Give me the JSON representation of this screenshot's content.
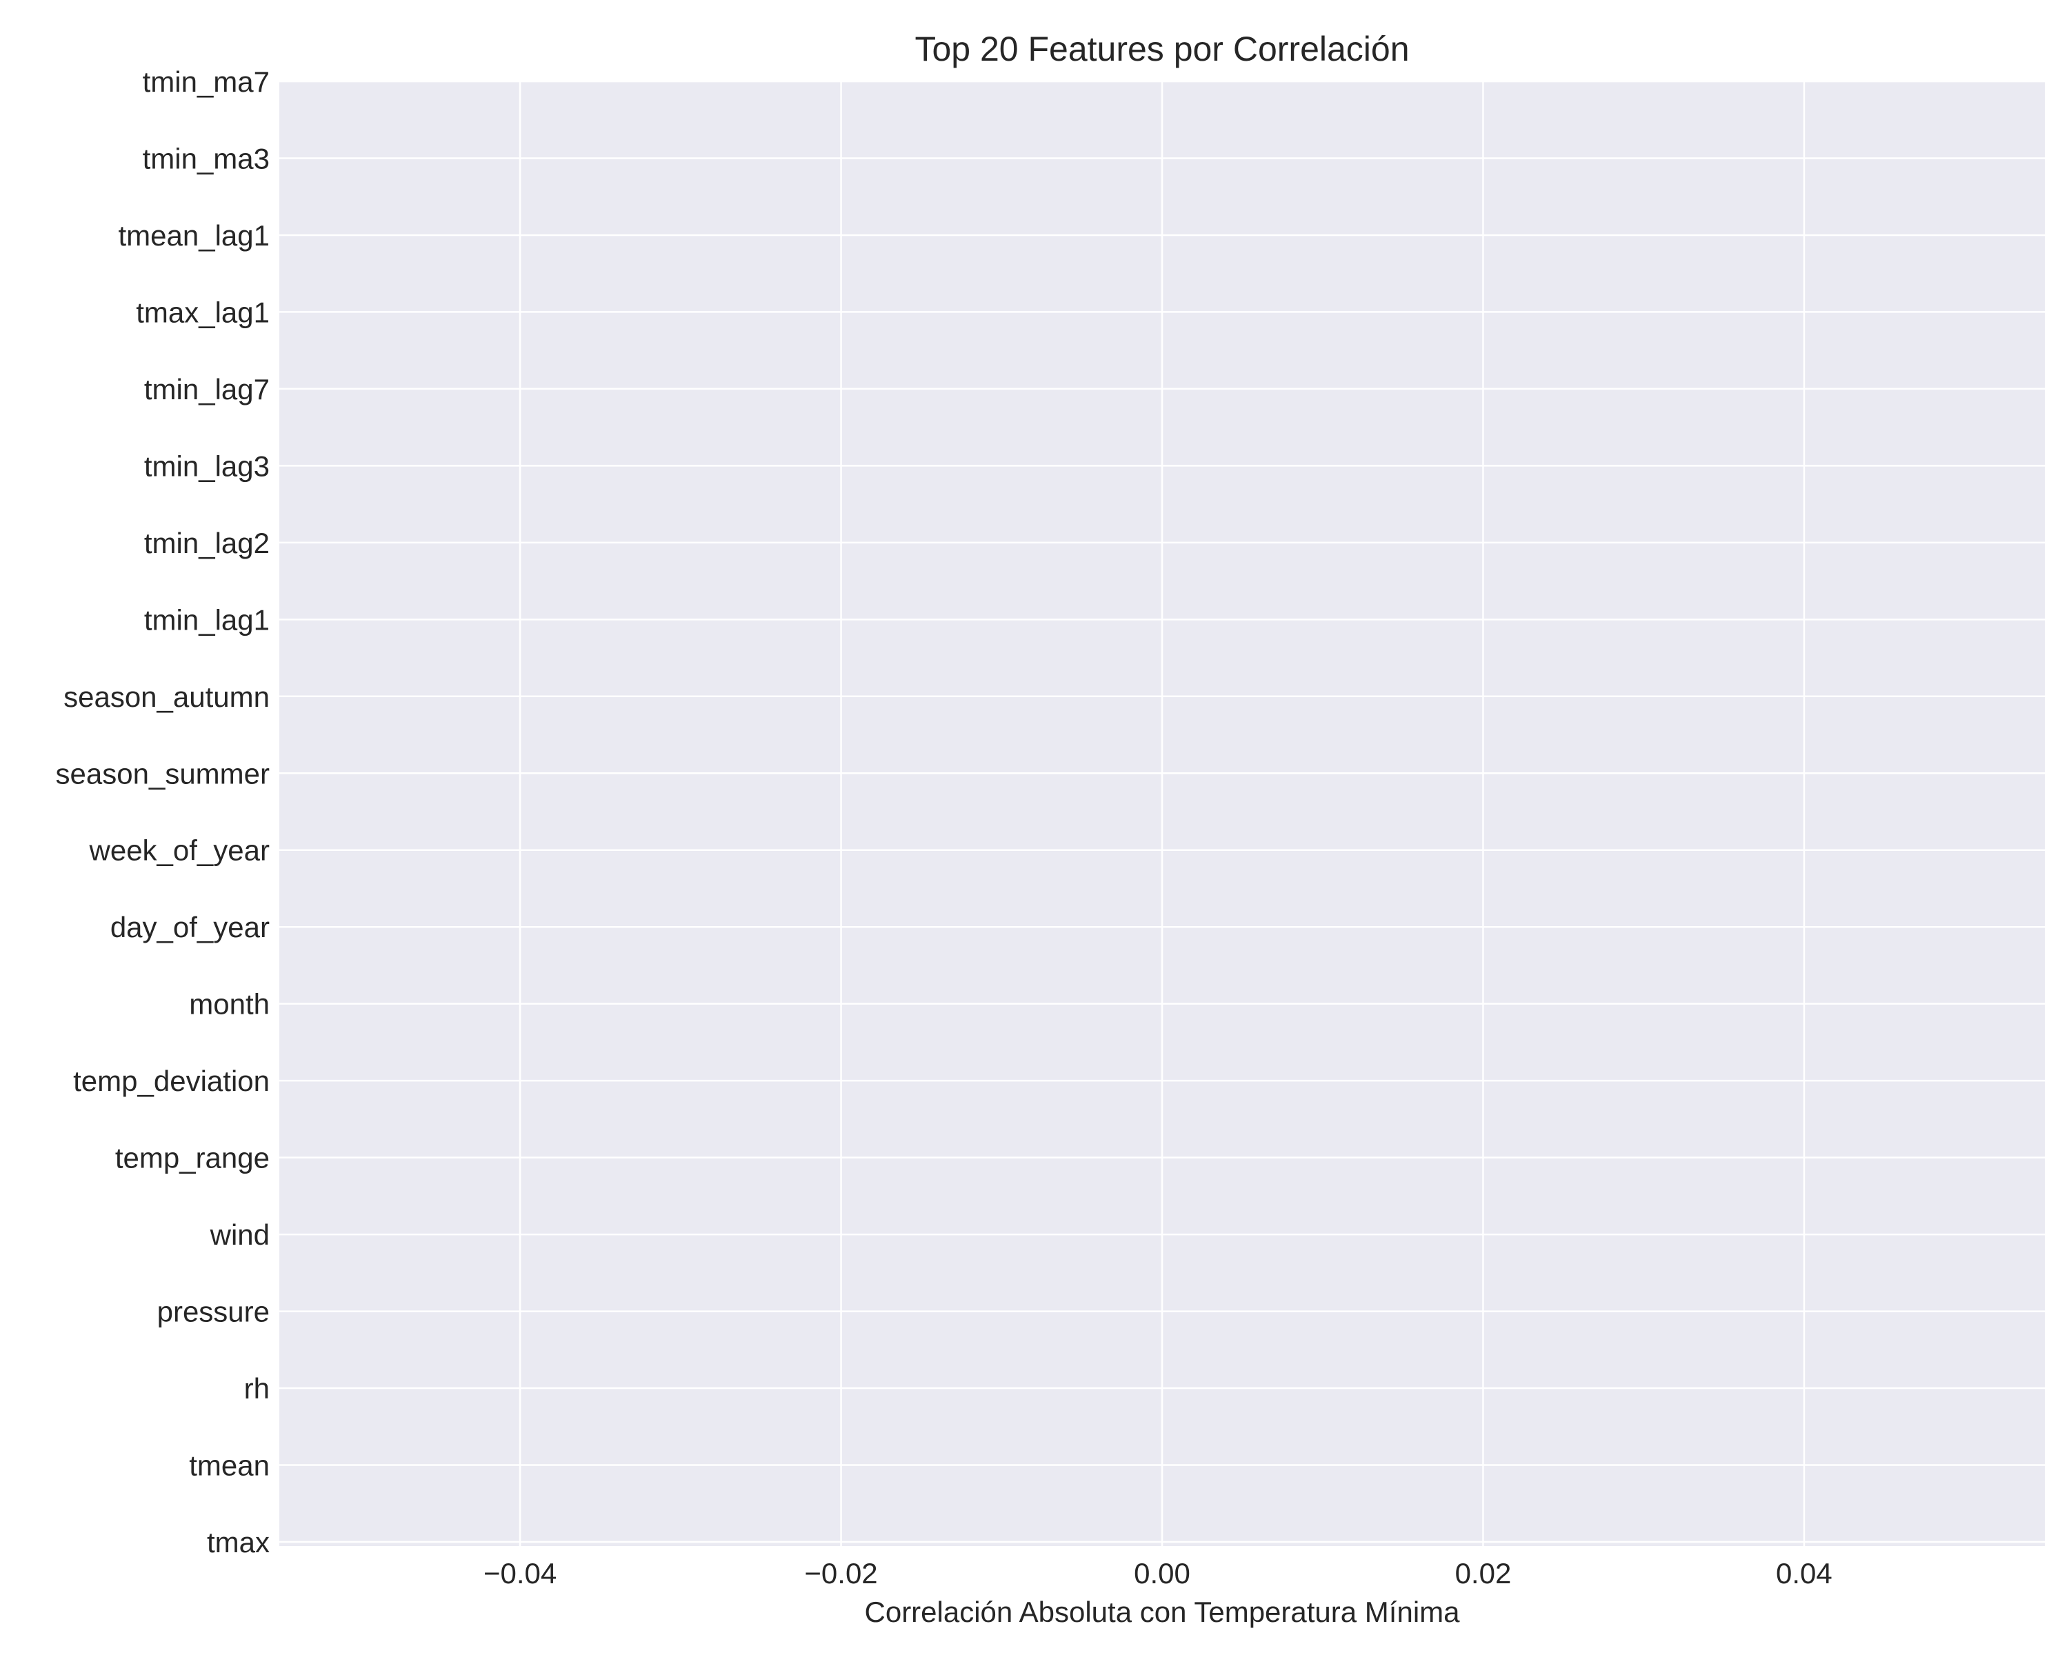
{
  "colors": {
    "plot_background": "#EAEAF2",
    "grid": "#FFFFFF",
    "text": "#262626",
    "bar": "#4C72B0"
  },
  "chart_data": {
    "type": "bar",
    "orientation": "horizontal",
    "title": "Top 20 Features por Correlación",
    "xlabel": "Correlación Absoluta con Temperatura Mínima",
    "ylabel": "",
    "categories": [
      "tmin_ma7",
      "tmin_ma3",
      "tmean_lag1",
      "tmax_lag1",
      "tmin_lag7",
      "tmin_lag3",
      "tmin_lag2",
      "tmin_lag1",
      "season_autumn",
      "season_summer",
      "week_of_year",
      "day_of_year",
      "month",
      "temp_deviation",
      "temp_range",
      "wind",
      "pressure",
      "rh",
      "tmean",
      "tmax"
    ],
    "values": [
      0,
      0,
      0,
      0,
      0,
      0,
      0,
      0,
      0,
      0,
      0,
      0,
      0,
      0,
      0,
      0,
      0,
      0,
      0,
      0
    ],
    "xlim": [
      -0.055,
      0.055
    ],
    "xticks": [
      -0.04,
      -0.02,
      0.0,
      0.02,
      0.04
    ],
    "xtick_labels": [
      "−0.04",
      "−0.02",
      "0.00",
      "0.02",
      "0.04"
    ],
    "grid": true
  }
}
